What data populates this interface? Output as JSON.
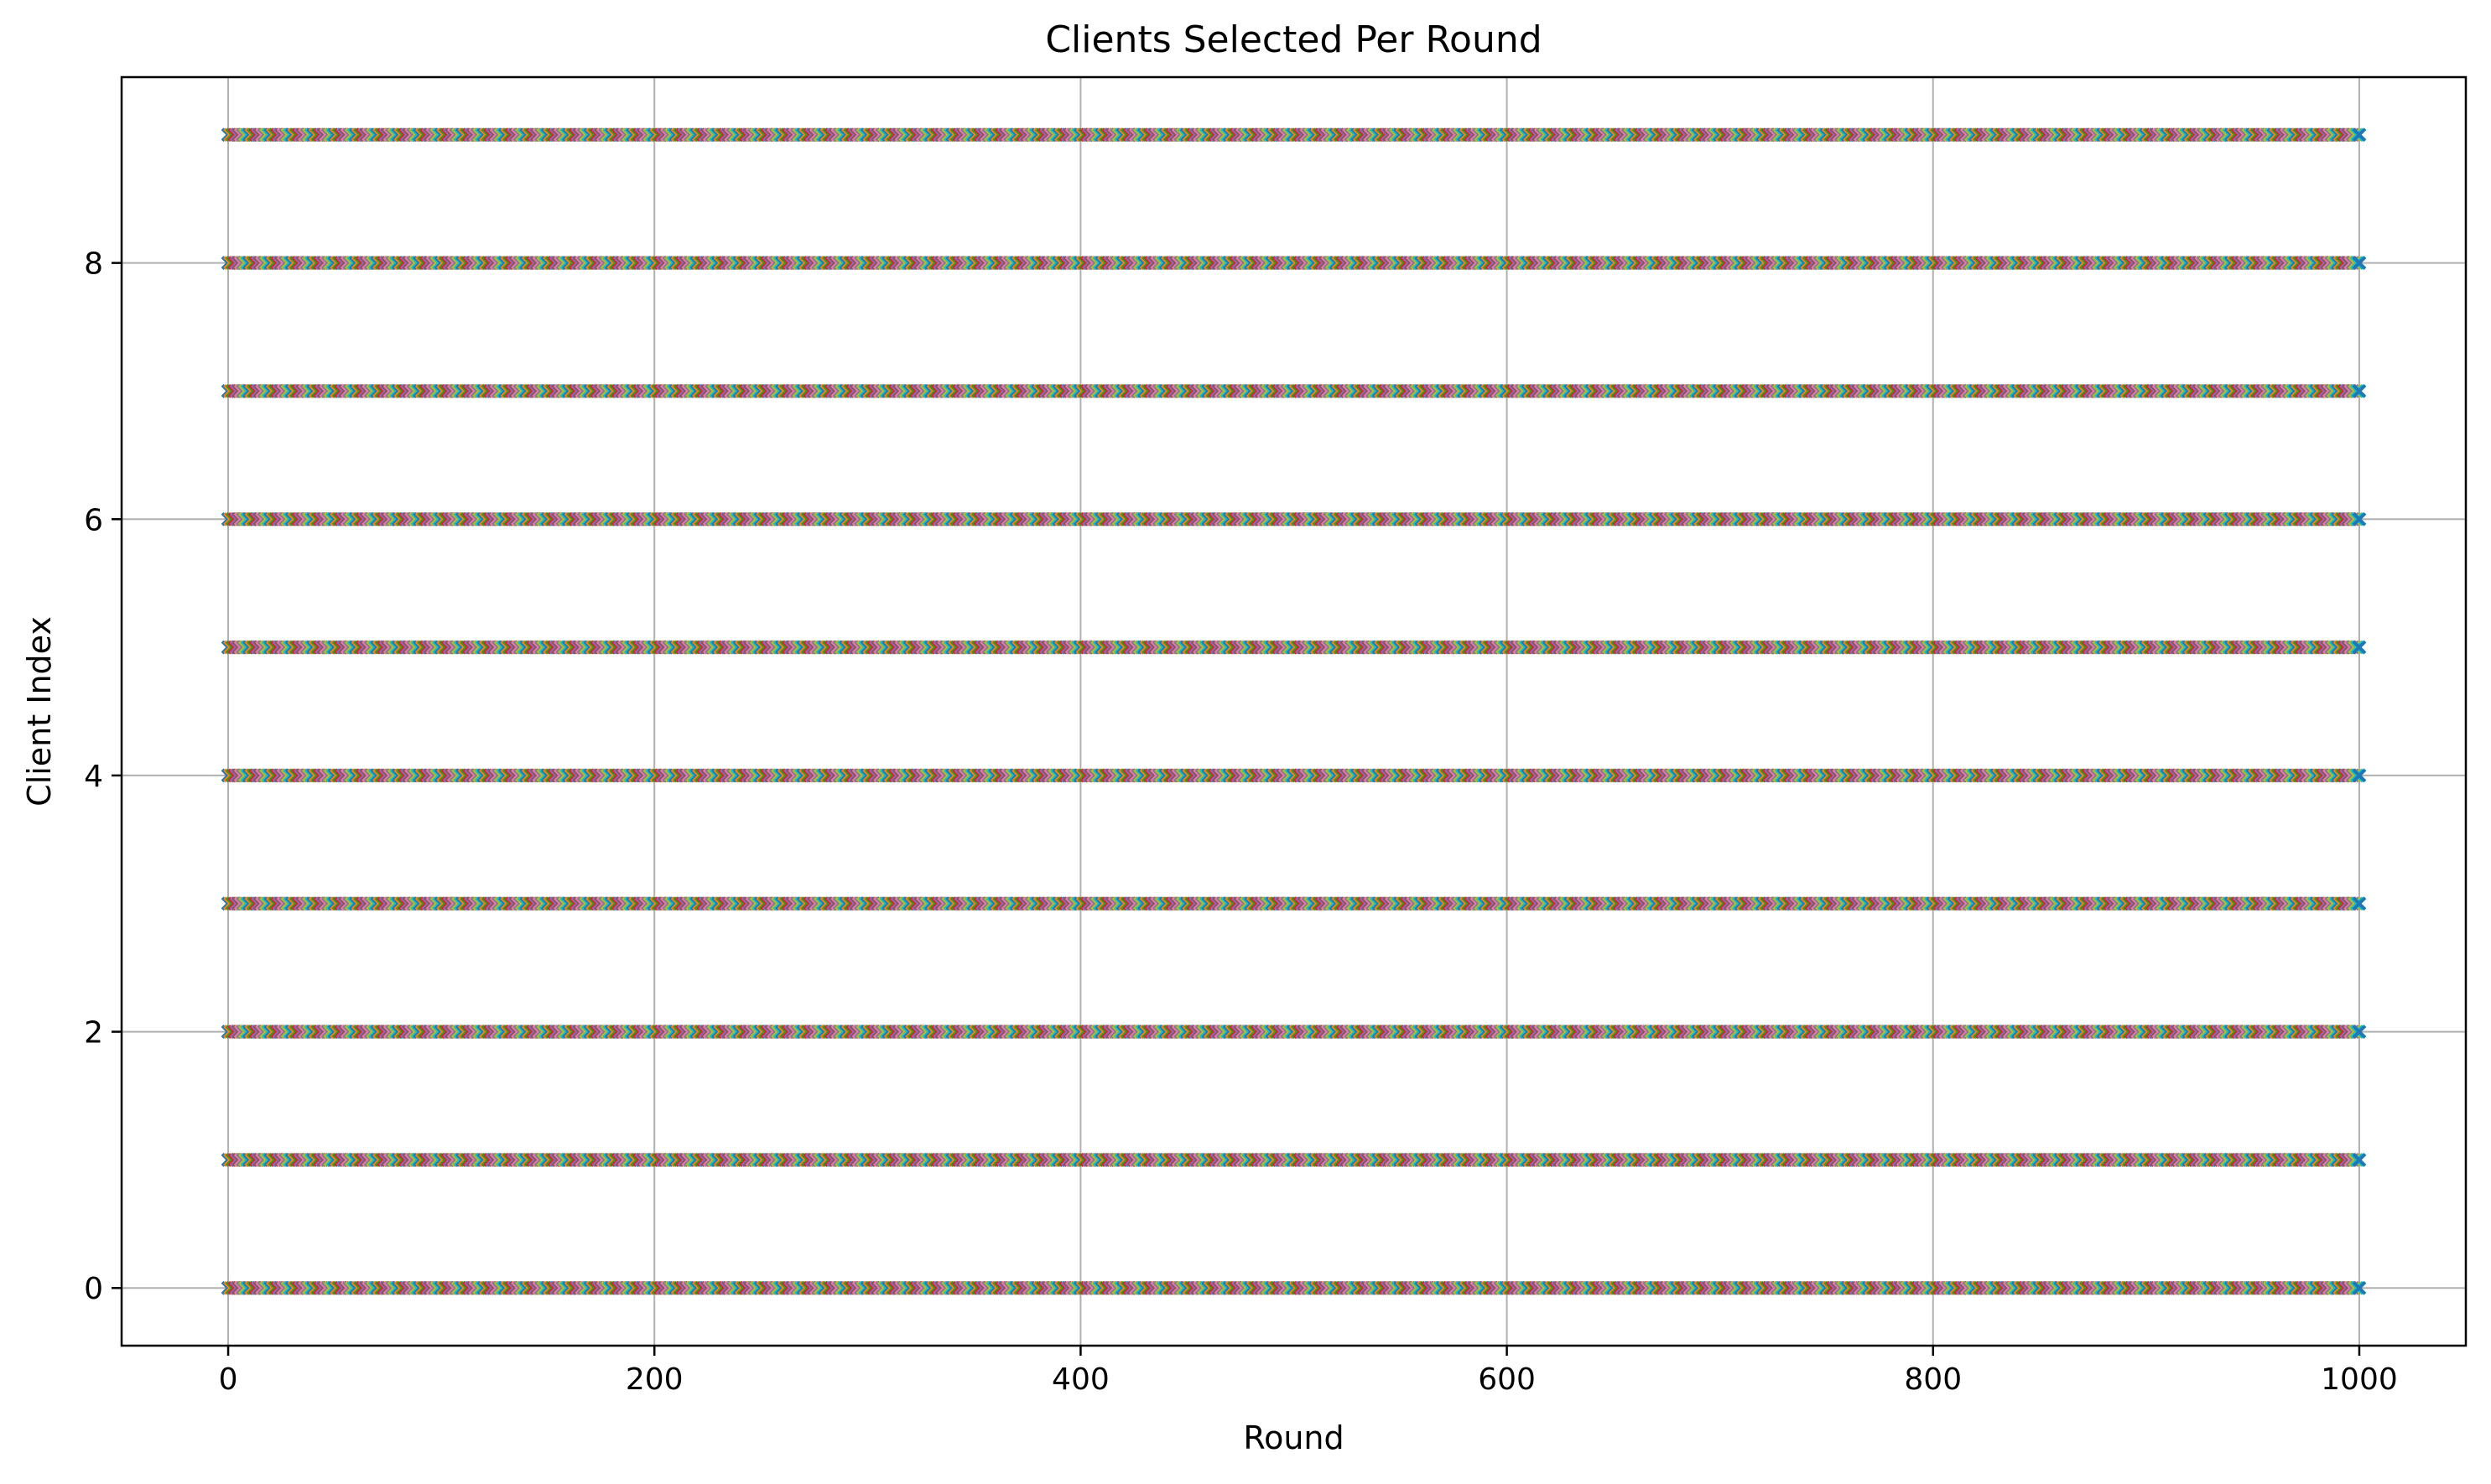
{
  "chart_data": {
    "type": "scatter",
    "title": "Clients Selected Per Round",
    "xlabel": "Round",
    "ylabel": "Client Index",
    "xlim": [
      -50,
      1050
    ],
    "ylim": [
      -0.45,
      9.45
    ],
    "xticks": [
      0,
      200,
      400,
      600,
      800,
      1000
    ],
    "yticks": [
      0,
      2,
      4,
      6,
      8
    ],
    "grid": true,
    "legend": "none",
    "marker": "x",
    "rounds": [
      0,
      1000
    ],
    "clients": [
      0,
      1,
      2,
      3,
      4,
      5,
      6,
      7,
      8,
      9
    ],
    "selection": "every client index marked in every round",
    "colors": [
      "#1f77b4",
      "#ff7f0e",
      "#2ca02c",
      "#d62728",
      "#9467bd",
      "#8c564b",
      "#e377c2",
      "#7f7f7f",
      "#bcbd22",
      "#17becf"
    ]
  }
}
